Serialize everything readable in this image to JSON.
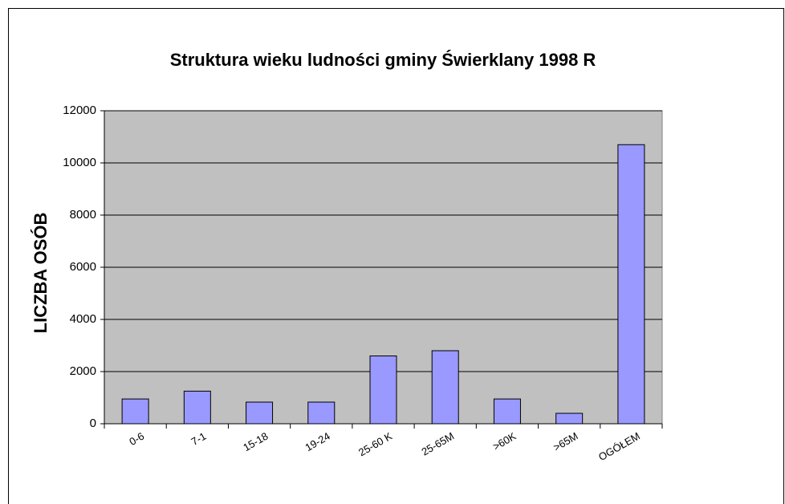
{
  "chart_data": {
    "type": "bar",
    "title": "Struktura wieku ludności gminy  Świerklany  1998 R",
    "y_label": "LICZBA OSÓB",
    "categories": [
      "0-6",
      "7-1",
      "15-18",
      "19-24",
      "25-60 K",
      "25-65M",
      ">60K",
      ">65M",
      "OGÓŁEM"
    ],
    "values": [
      950,
      1250,
      830,
      830,
      2600,
      2800,
      950,
      400,
      10700
    ],
    "color": "#9999ff",
    "ylim": [
      0,
      12000
    ],
    "yticks": [
      0,
      2000,
      4000,
      6000,
      8000,
      10000,
      12000
    ],
    "grid": true
  }
}
